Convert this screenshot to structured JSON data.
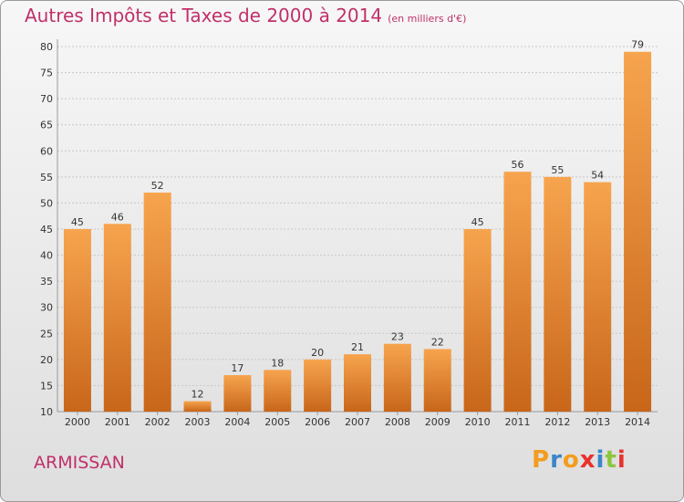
{
  "header": {
    "title": "Autres Impôts et Taxes de 2000 à 2014",
    "unit": "(en milliers d'€)"
  },
  "footer": {
    "commune": "ARMISSAN",
    "logo": "Proxiti"
  },
  "colors": {
    "title": "#c0306a",
    "bar_top": "#f7a44e",
    "bar_bottom": "#c8661a",
    "logo_letters": [
      "#f39c1e",
      "#3a86c8",
      "#f39c1e",
      "#e8312e",
      "#3a86c8",
      "#8cc63f",
      "#e8312e"
    ]
  },
  "chart_data": {
    "type": "bar",
    "categories": [
      "2000",
      "2001",
      "2002",
      "2003",
      "2004",
      "2005",
      "2006",
      "2007",
      "2008",
      "2009",
      "2010",
      "2011",
      "2012",
      "2013",
      "2014"
    ],
    "values": [
      45,
      46,
      52,
      12,
      17,
      18,
      20,
      21,
      23,
      22,
      45,
      56,
      55,
      54,
      79
    ],
    "ylim": [
      10,
      80
    ],
    "yticks": [
      10,
      15,
      20,
      25,
      30,
      35,
      40,
      45,
      50,
      55,
      60,
      65,
      70,
      75,
      80
    ],
    "grid": true,
    "data_labels": true
  }
}
